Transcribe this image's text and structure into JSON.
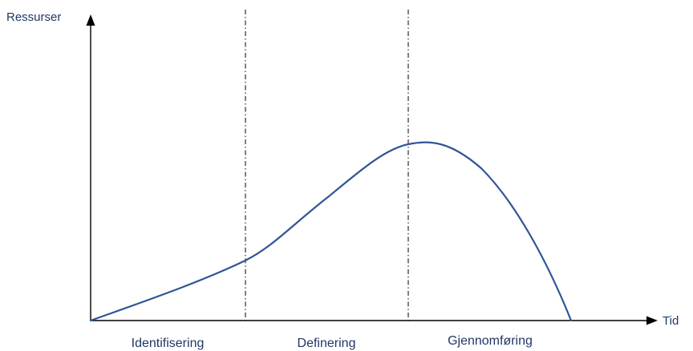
{
  "axes": {
    "y_label": "Ressurser",
    "x_label": "Tid"
  },
  "phases": [
    {
      "label": "Identifisering"
    },
    {
      "label": "Definering"
    },
    {
      "label": "Gjennomføring"
    }
  ],
  "colors": {
    "curve": "#2f5597",
    "text": "#1f3864",
    "axis": "#000000",
    "divider": "#000000"
  }
}
